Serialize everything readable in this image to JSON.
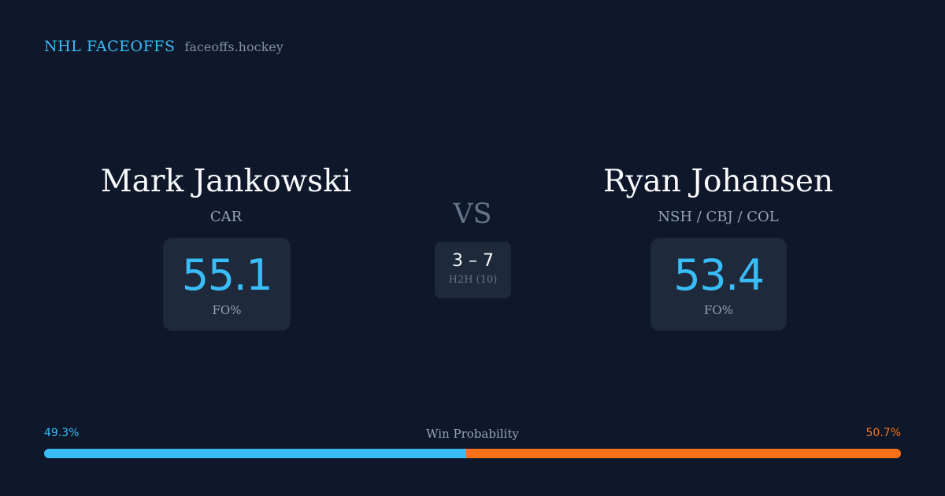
{
  "brand": {
    "name": "NHL FACEOFFS",
    "domain": "faceoffs.hockey"
  },
  "matchup": {
    "vs_label": "VS",
    "h2h": {
      "score": "3 – 7",
      "label": "H2H (10)"
    }
  },
  "player_left": {
    "name": "Mark Jankowski",
    "team": "CAR",
    "fo_pct": "55.1",
    "fo_label": "FO%"
  },
  "player_right": {
    "name": "Ryan Johansen",
    "team": "NSH / CBJ / COL",
    "fo_pct": "53.4",
    "fo_label": "FO%"
  },
  "win_probability": {
    "label": "Win Probability",
    "left_text": "49.3%",
    "right_text": "50.7%",
    "left_value": 49.3,
    "right_value": 50.7,
    "left_color": "#38bdf8",
    "right_color": "#f97316"
  }
}
